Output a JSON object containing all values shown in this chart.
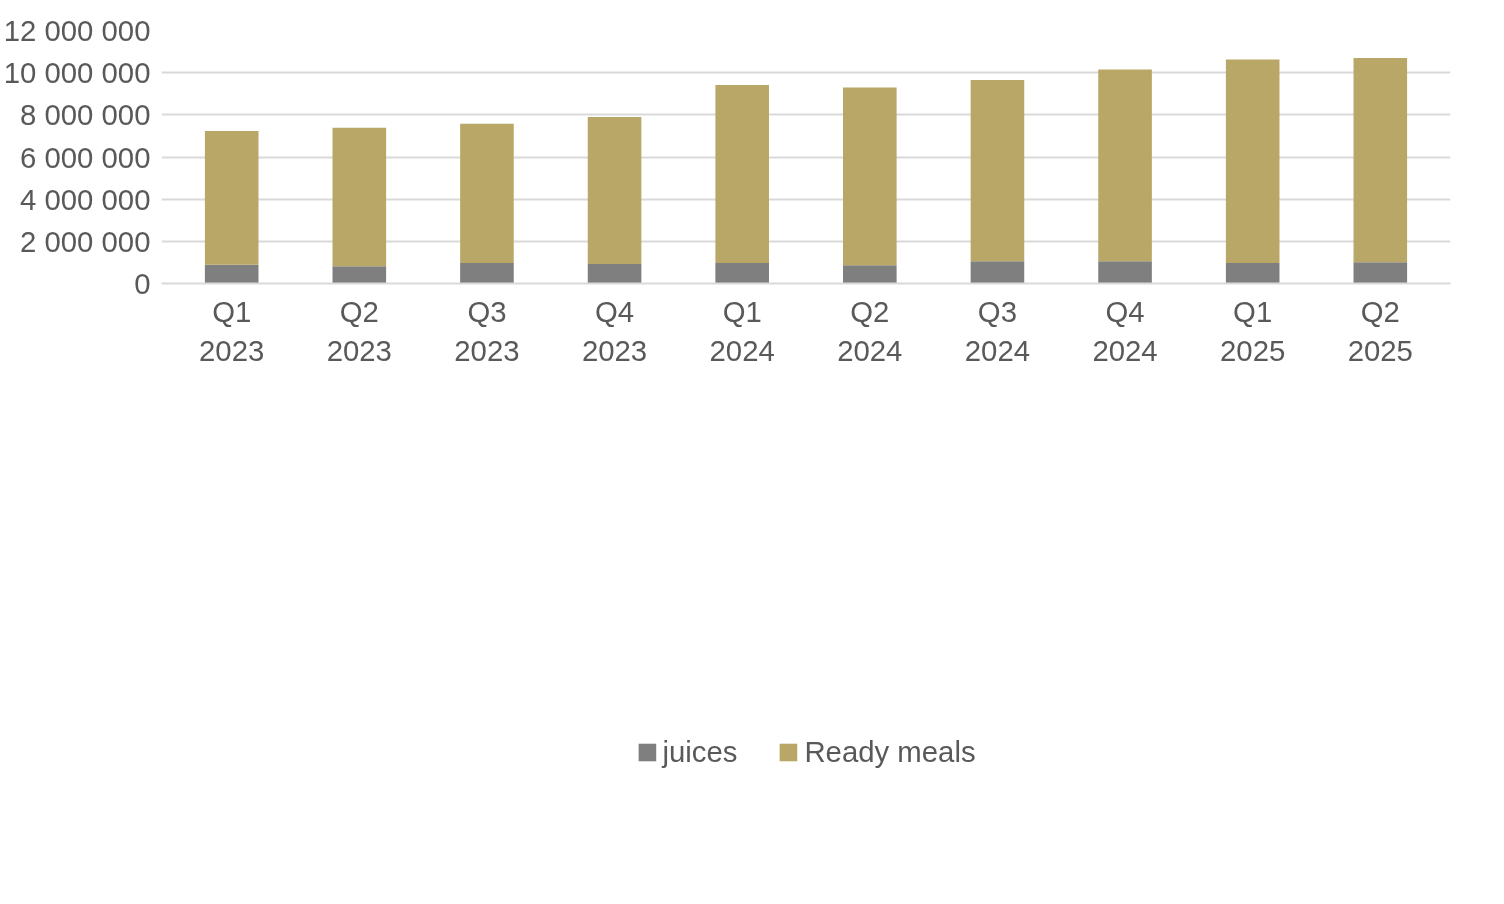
{
  "chart_data": {
    "type": "bar",
    "stacked": true,
    "categories": [
      "Q1\n2023",
      "Q2\n2023",
      "Q3\n2023",
      "Q4\n2023",
      "Q1\n2024",
      "Q2\n2024",
      "Q3\n2024",
      "Q4\n2024",
      "Q1\n2025",
      "Q2\n2025"
    ],
    "series": [
      {
        "name": "juices",
        "color": "#7f7f7f",
        "values": [
          890000,
          820000,
          970000,
          930000,
          970000,
          860000,
          1050000,
          1050000,
          970000,
          1010000
        ]
      },
      {
        "name": "Ready meals",
        "color": "#b9a768",
        "values": [
          6340000,
          6570000,
          6610000,
          6970000,
          8440000,
          8440000,
          8600000,
          9100000,
          9650000,
          9690000
        ]
      }
    ],
    "ylim": [
      0,
      12000000
    ],
    "yticks": [
      {
        "value": 0,
        "label": "0"
      },
      {
        "value": 2000000,
        "label": "2 000 000"
      },
      {
        "value": 4000000,
        "label": "4 000 000"
      },
      {
        "value": 6000000,
        "label": "6 000 000"
      },
      {
        "value": 8000000,
        "label": "8 000 000"
      },
      {
        "value": 10000000,
        "label": "10 000 000"
      },
      {
        "value": 12000000,
        "label": "12 000 000"
      }
    ],
    "grid": "y",
    "legend": "bottom"
  }
}
